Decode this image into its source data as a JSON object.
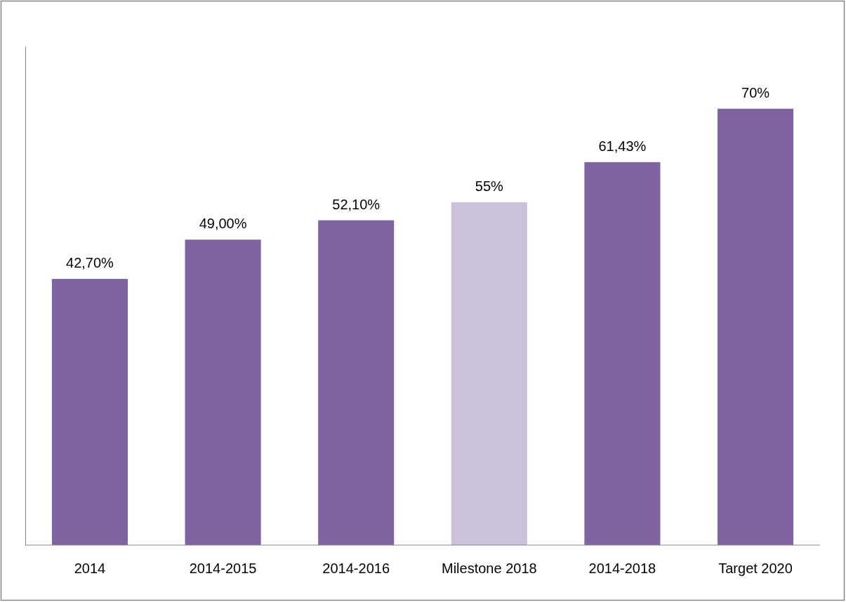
{
  "chart_data": {
    "type": "bar",
    "categories": [
      "2014",
      "2014-2015",
      "2014-2016",
      "Milestone 2018",
      "2014-2018",
      "Target 2020"
    ],
    "values": [
      42.7,
      49,
      52.1,
      55,
      61.43,
      70
    ],
    "colors": [
      "#8064a2",
      "#8064a2",
      "#8064a2",
      "#ccc1da",
      "#8064a2",
      "#8064a2"
    ],
    "value_labels": [
      "42,70%",
      "49,00%",
      "52,10%",
      "55%",
      "61,43%",
      "70%"
    ],
    "ylim": [
      0,
      80
    ],
    "grid": false
  }
}
